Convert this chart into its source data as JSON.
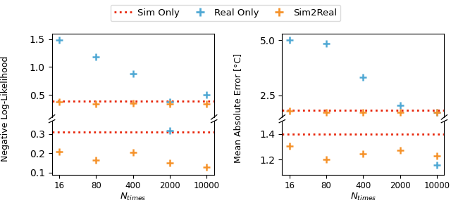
{
  "x_ticks": [
    16,
    80,
    400,
    2000,
    10000
  ],
  "x_tick_labels": [
    "16",
    "80",
    "400",
    "2000",
    "10000"
  ],
  "nll_upper_real_only": [
    1.48,
    1.18,
    0.88,
    0.38,
    0.5
  ],
  "nll_upper_sim2real": [
    0.37,
    0.335,
    0.355,
    0.335,
    0.335
  ],
  "nll_upper_sim_only": 0.385,
  "nll_lower_real_only": [
    null,
    null,
    null,
    0.315,
    null
  ],
  "nll_lower_sim2real": [
    0.21,
    0.165,
    0.205,
    0.15,
    0.13
  ],
  "nll_lower_sim_only": 0.31,
  "mae_upper_real_only": [
    5.0,
    4.85,
    3.3,
    2.05,
    1.72
  ],
  "mae_upper_sim2real": [
    1.77,
    1.73,
    1.73,
    1.73,
    1.73
  ],
  "mae_upper_sim_only": 1.82,
  "mae_lower_sim2real": [
    1.305,
    1.2,
    1.245,
    1.27,
    1.225
  ],
  "mae_lower_real_only": [
    null,
    null,
    null,
    null,
    1.155
  ],
  "mae_lower_sim_only": 1.4,
  "sim_only_color": "#e8260a",
  "real_only_color": "#4fa8d4",
  "sim2real_color": "#f5922a",
  "ylabel_left": "Negative Log-Likelihood",
  "ylabel_right": "Mean Absolute Error [°C]",
  "xlabel": "$N_{times}$",
  "legend_labels": [
    "Sim Only",
    "Real Only",
    "Sim2Real"
  ],
  "nll_upper_ylim": [
    0.1,
    1.6
  ],
  "nll_upper_yticks": [
    0.5,
    1.0,
    1.5
  ],
  "nll_lower_ylim": [
    0.09,
    0.365
  ],
  "nll_lower_yticks": [
    0.1,
    0.2,
    0.3
  ],
  "mae_upper_ylim": [
    1.5,
    5.3
  ],
  "mae_upper_yticks": [
    2.5,
    5.0
  ],
  "mae_lower_ylim": [
    1.08,
    1.5
  ],
  "mae_lower_yticks": [
    1.2,
    1.4
  ]
}
